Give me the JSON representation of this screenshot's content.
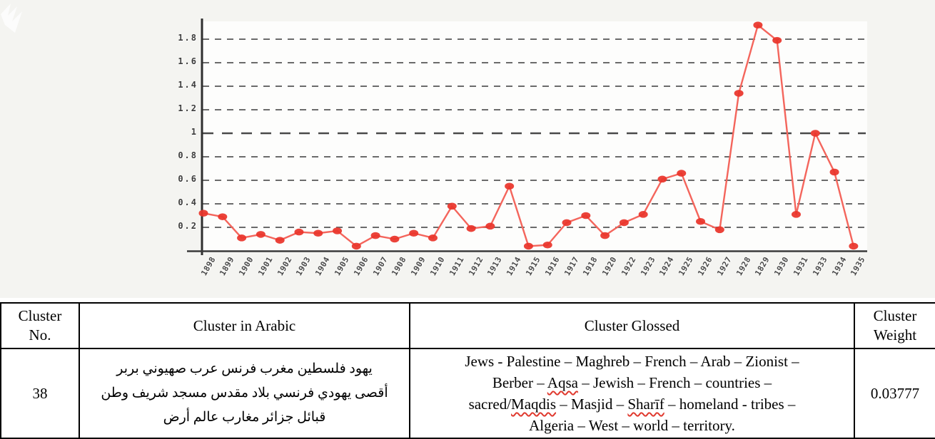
{
  "chart_data": {
    "type": "line",
    "title": "",
    "xlabel": "",
    "ylabel": "",
    "x": [
      "1898",
      "1899",
      "1900",
      "1901",
      "1902",
      "1903",
      "1904",
      "1905",
      "1906",
      "1907",
      "1908",
      "1909",
      "1910",
      "1911",
      "1912",
      "1913",
      "1914",
      "1915",
      "1916",
      "1917",
      "1918",
      "1920",
      "1922",
      "1923",
      "1924",
      "1925",
      "1926",
      "1927",
      "1928",
      "1829",
      "1930",
      "1931",
      "1933",
      "1934",
      "1935"
    ],
    "values": [
      0.32,
      0.29,
      0.11,
      0.14,
      0.09,
      0.16,
      0.15,
      0.17,
      0.04,
      0.13,
      0.1,
      0.15,
      0.11,
      0.38,
      0.19,
      0.21,
      0.55,
      0.04,
      0.05,
      0.24,
      0.3,
      0.13,
      0.24,
      0.31,
      0.61,
      0.66,
      0.25,
      0.18,
      1.34,
      1.92,
      1.79,
      0.31,
      1.0,
      0.67,
      0.04
    ],
    "ylim": [
      0,
      2.0
    ],
    "yticks": [
      0.2,
      0.4,
      0.6,
      0.8,
      1,
      1.2,
      1.4,
      1.6,
      1.8
    ],
    "ytick_labels": [
      "0.2",
      "0.4",
      "0.6",
      "0.8",
      "1",
      "1.2",
      "1.4",
      "1.6",
      "1.8"
    ],
    "grid": "horizontal dashed",
    "legend": "none",
    "line_color": "#f4655c",
    "marker_color": "#ea352b",
    "emphasized_gridline": "1"
  },
  "table": {
    "headers": [
      "Cluster\nNo.",
      "Cluster in Arabic",
      "Cluster Glossed",
      "Cluster\nWeight"
    ],
    "row": {
      "cluster_no": "38",
      "arabic_lines": [
        "يهود فلسطين مغرب فرنس عرب صهيوني بربر",
        "أقصى يهودي فرنسي بلاد مقدس مسجد شريف وطن",
        "قبائل جزائر مغارب عالم أرض"
      ],
      "gloss_lines": [
        [
          {
            "t": "Jews - Palestine – Maghreb – French – Arab – Zionist –"
          }
        ],
        [
          {
            "t": "Berber – "
          },
          {
            "t": "Aqsa",
            "sq": true
          },
          {
            "t": " – Jewish – French – countries –"
          }
        ],
        [
          {
            "t": "sacred/"
          },
          {
            "t": "Maqdis",
            "sq": true
          },
          {
            "t": " – Masjid – "
          },
          {
            "t": "Sharīf",
            "sq": true
          },
          {
            "t": " – homeland -  tribes –"
          }
        ],
        [
          {
            "t": "Algeria – West – world – territory."
          }
        ]
      ],
      "weight": "0.03777"
    }
  }
}
